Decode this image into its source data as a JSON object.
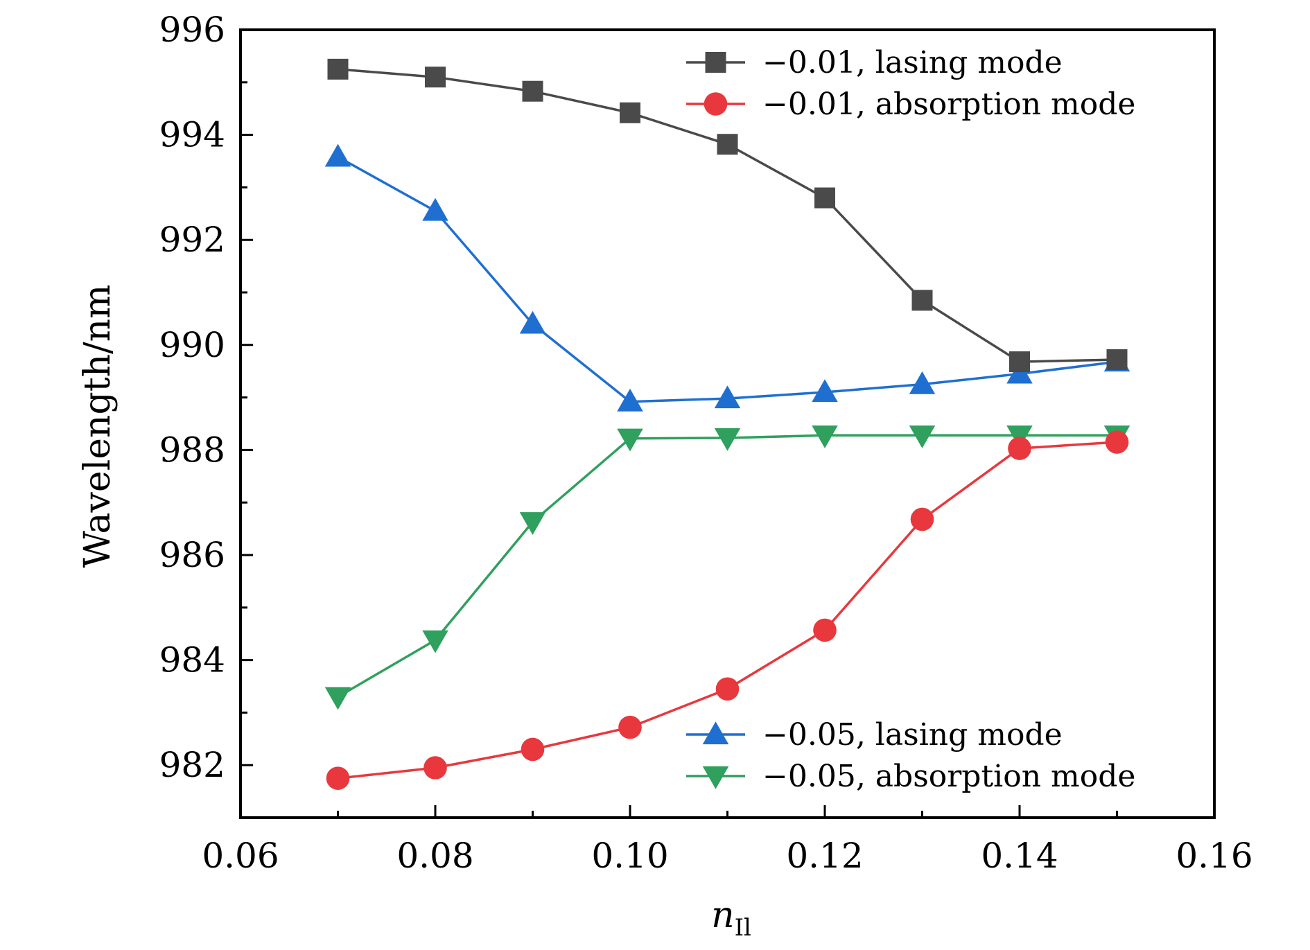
{
  "chart_data": {
    "type": "line",
    "title": "",
    "xlabel": "n",
    "xlabel_sub": "Il",
    "ylabel": "Wavelength/nm",
    "xlim": [
      0.06,
      0.16
    ],
    "ylim": [
      981,
      996
    ],
    "x_ticks": [
      0.06,
      0.08,
      0.1,
      0.12,
      0.14,
      0.16
    ],
    "x_tick_labels": [
      "0.06",
      "0.08",
      "0.10",
      "0.12",
      "0.14",
      "0.16"
    ],
    "y_ticks": [
      982,
      984,
      986,
      988,
      990,
      992,
      994,
      996
    ],
    "y_tick_labels": [
      "982",
      "984",
      "986",
      "988",
      "990",
      "992",
      "994",
      "996"
    ],
    "grid": false,
    "x": [
      0.07,
      0.08,
      0.09,
      0.1,
      0.11,
      0.12,
      0.13,
      0.14,
      0.15
    ],
    "series": [
      {
        "name": "−0.01, lasing mode",
        "color": "#4a4a4a",
        "marker": "square",
        "legend": "top-right",
        "values": [
          995.25,
          995.1,
          994.83,
          994.42,
          993.82,
          992.8,
          990.85,
          989.68,
          989.72
        ]
      },
      {
        "name": "−0.01, absorption mode",
        "color": "#e8383d",
        "marker": "circle",
        "legend": "top-right",
        "values": [
          981.75,
          981.95,
          982.3,
          982.72,
          983.45,
          984.57,
          986.68,
          988.03,
          988.15
        ]
      },
      {
        "name": "−0.05, lasing mode",
        "color": "#1f6fd1",
        "marker": "triangle-up",
        "legend": "bottom-right",
        "values": [
          993.58,
          992.55,
          990.4,
          988.92,
          988.98,
          989.1,
          989.25,
          989.45,
          989.68
        ]
      },
      {
        "name": "−0.05, absorption mode",
        "color": "#2fa05d",
        "marker": "triangle-down",
        "legend": "bottom-right",
        "values": [
          983.3,
          984.38,
          986.63,
          988.22,
          988.23,
          988.28,
          988.28,
          988.28,
          988.28
        ]
      }
    ]
  }
}
